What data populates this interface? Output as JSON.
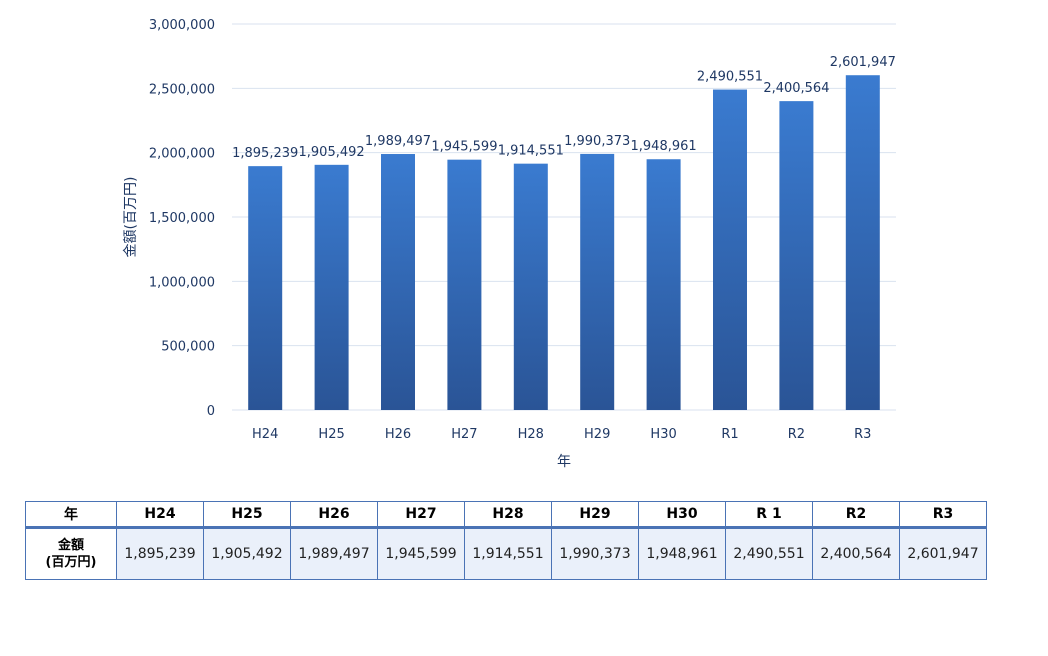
{
  "chart_data": {
    "type": "bar",
    "categories": [
      "H24",
      "H25",
      "H26",
      "H27",
      "H28",
      "H29",
      "H30",
      "R1",
      "R2",
      "R3"
    ],
    "values": [
      1895239,
      1905492,
      1989497,
      1945599,
      1914551,
      1990373,
      1948961,
      2490551,
      2400564,
      2601947
    ],
    "data_labels": [
      "1,895,239",
      "1,905,492",
      "1,989,497",
      "1,945,599",
      "1,914,551",
      "1,990,373",
      "1,948,961",
      "2,490,551",
      "2,400,564",
      "2,601,947"
    ],
    "yticks": [
      0,
      500000,
      1000000,
      1500000,
      2000000,
      2500000,
      3000000
    ],
    "ytick_labels": [
      "0",
      "500,000",
      "1,000,000",
      "1,500,000",
      "2,000,000",
      "2,500,000",
      "3,000,000"
    ],
    "ylim": [
      0,
      3000000
    ],
    "xlabel": "年",
    "ylabel": "金額(百万円)",
    "grid": true,
    "bar_color": "#3a78c9",
    "bar_color_dark": "#2a5496",
    "grid_color": "#d9e2ef"
  },
  "table": {
    "header_label": "年",
    "columns": [
      "H24",
      "H25",
      "H26",
      "H27",
      "H28",
      "H29",
      "H30",
      "R 1",
      "R2",
      "R3"
    ],
    "row_label_line1": "金額",
    "row_label_line2": "(百万円)",
    "values": [
      "1,895,239",
      "1,905,492",
      "1,989,497",
      "1,945,599",
      "1,914,551",
      "1,990,373",
      "1,948,961",
      "2,490,551",
      "2,400,564",
      "2,601,947"
    ]
  }
}
